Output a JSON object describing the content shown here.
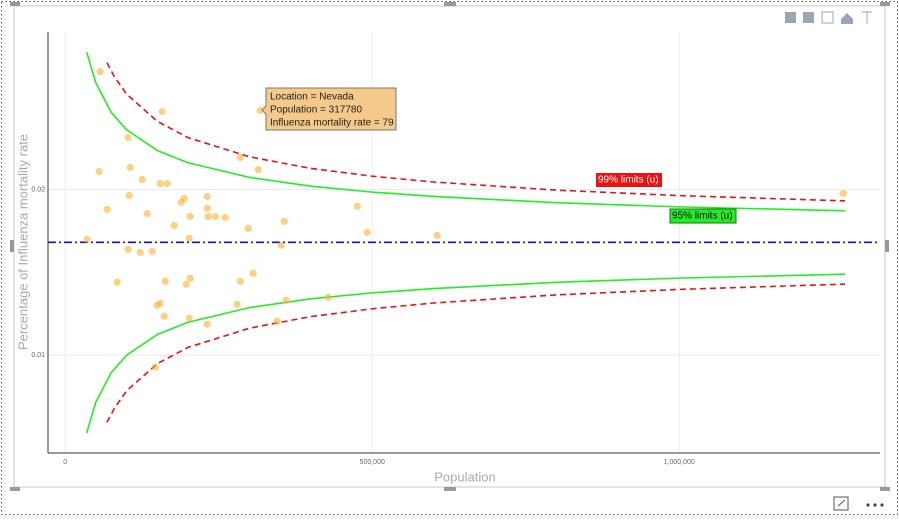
{
  "chart_data": {
    "type": "scatter",
    "xlabel": "Population",
    "ylabel": "Percentage of Influenza mortality rate",
    "xlim": [
      -28000,
      1327000
    ],
    "ylim": [
      0.0041,
      0.0295
    ],
    "xticks": [
      0,
      {
        "value": 500000,
        "label": "500,000"
      },
      {
        "value": 1000000,
        "label": "1,000,000"
      }
    ],
    "yticks": [
      0.01,
      0.02
    ],
    "grid": true,
    "series": [
      {
        "color": "#ffb02e",
        "x": [
          57000,
          35800,
          55400,
          68400,
          102600,
          105900,
          104200,
          125400,
          133500,
          141700,
          84700,
          158000,
          154700,
          166100,
          177500,
          188900,
          193800,
          203600,
          202000,
          231300,
          231300,
          232900,
          244300,
          260600,
          298000,
          285000,
          314300,
          317780,
          356700,
          351800,
          102600,
          122200,
          154700,
          161200,
          149800,
          162900,
          197100,
          203600,
          231300,
          202000,
          285000,
          306200,
          280100,
          345300,
          359900,
          146600,
          428300,
          475600,
          491900,
          605900,
          1267100
        ],
        "values": [
          0.02711,
          0.01699,
          0.02108,
          0.0188,
          0.02313,
          0.02133,
          0.01964,
          0.0206,
          0.01855,
          0.01627,
          0.0144,
          0.0247,
          0.02036,
          0.02036,
          0.01783,
          0.01922,
          0.01946,
          0.01837,
          0.01705,
          0.01958,
          0.01886,
          0.01837,
          0.01837,
          0.01831,
          0.01765,
          0.02193,
          0.0212,
          0.02476,
          0.01807,
          0.01663,
          0.01639,
          0.0162,
          0.01313,
          0.01235,
          0.01301,
          0.01446,
          0.01428,
          0.01464,
          0.01187,
          0.01223,
          0.01446,
          0.01494,
          0.01307,
          0.01205,
          0.01331,
          0.00928,
          0.01349,
          0.01898,
          0.01741,
          0.01723,
          0.01976
        ]
      }
    ],
    "center_line": {
      "value": 0.01681,
      "color": "#1010c8"
    },
    "limits": [
      {
        "name": "95% limits (u)",
        "color": "#22ee22",
        "dashed": false,
        "x": [
          35000,
          50000,
          75000,
          100000,
          150000,
          200000,
          300000,
          400000,
          500000,
          600000,
          800000,
          1000000,
          1270000
        ],
        "upper": [
          0.02829,
          0.02642,
          0.02465,
          0.0236,
          0.02235,
          0.02161,
          0.02073,
          0.0202,
          0.01984,
          0.01958,
          0.0192,
          0.01895,
          0.01871
        ],
        "lower": [
          0.00531,
          0.00718,
          0.00895,
          0.01,
          0.01125,
          0.01199,
          0.01287,
          0.0134,
          0.01376,
          0.01402,
          0.0144,
          0.01465,
          0.01489
        ]
      },
      {
        "name": "99% limits (u)",
        "color": "#ee1111",
        "dashed": true,
        "x": [
          68000,
          80000,
          100000,
          150000,
          200000,
          300000,
          400000,
          500000,
          600000,
          800000,
          1000000,
          1270000
        ],
        "upper": [
          0.02765,
          0.02681,
          0.02575,
          0.02411,
          0.02313,
          0.02197,
          0.02127,
          0.0208,
          0.02045,
          0.01996,
          0.01963,
          0.01931
        ],
        "lower": [
          0.00595,
          0.00679,
          0.00785,
          0.00949,
          0.01047,
          0.01163,
          0.01233,
          0.0128,
          0.01315,
          0.01364,
          0.01397,
          0.01429
        ]
      }
    ],
    "tooltip": [
      "Location = Nevada",
      "Population = 317780",
      "Influenza mortality rate = 79"
    ]
  }
}
